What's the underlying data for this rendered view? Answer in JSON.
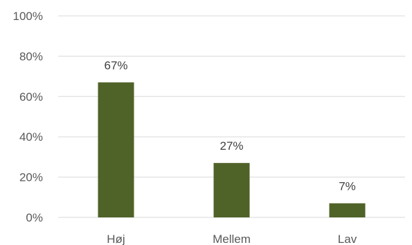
{
  "chart_data": {
    "type": "bar",
    "title": "",
    "xlabel": "",
    "ylabel": "",
    "categories": [
      "Høj",
      "Mellem",
      "Lav"
    ],
    "values": [
      0.67,
      0.27,
      0.07
    ],
    "data_labels": [
      "67%",
      "27%",
      "7%"
    ],
    "ylim": [
      0,
      1
    ],
    "yticks": [
      0,
      0.2,
      0.4,
      0.6,
      0.8,
      1.0
    ],
    "ytick_labels": [
      "0%",
      "20%",
      "40%",
      "60%",
      "80%",
      "100%"
    ],
    "grid": true,
    "legend": "none",
    "bar_color": "#4f6228",
    "grid_color": "#d9d9d9",
    "text_color": "#595959"
  }
}
